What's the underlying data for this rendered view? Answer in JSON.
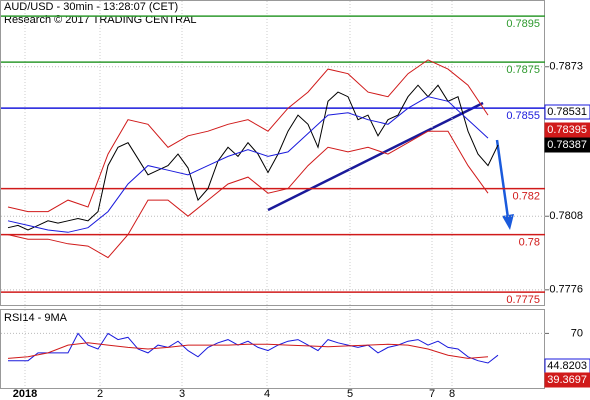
{
  "chart_data": [
    {
      "type": "financial",
      "title": "AUD/USD - 30min - 13:28:07 (CET)",
      "subtitle": "Research © 2017 TRADING CENTRAL",
      "ylim": [
        0.77694,
        0.79016
      ],
      "yticks": [
        0.7873,
        0.7808,
        0.7776
      ],
      "grid": true,
      "levels": [
        {
          "value": 0.7895,
          "color": "#2e9a2e"
        },
        {
          "value": 0.7875,
          "color": "#2e9a2e"
        },
        {
          "value": 0.7855,
          "color": "#1a1adc"
        },
        {
          "value": 0.782,
          "color": "#d01a1a"
        },
        {
          "value": 0.78,
          "color": "#d01a1a"
        },
        {
          "value": 0.7775,
          "color": "#d01a1a"
        }
      ],
      "markers": [
        {
          "value": 0.78531,
          "color": "#1a1adc"
        },
        {
          "value": 0.78395,
          "color": "#d01a1a"
        },
        {
          "value": 0.78387,
          "color": "#000000"
        }
      ],
      "series": [
        {
          "color": "#000000",
          "values": [
            0.7803,
            0.7804,
            0.7802,
            0.7804,
            0.7806,
            0.7805,
            0.7806,
            0.7807,
            0.7806,
            0.781,
            0.783,
            0.7838,
            0.784,
            0.7833,
            0.7826,
            0.7828,
            0.783,
            0.7835,
            0.7829,
            0.7815,
            0.782,
            0.7832,
            0.7838,
            0.7834,
            0.784,
            0.7835,
            0.7827,
            0.7835,
            0.7845,
            0.7852,
            0.7848,
            0.7838,
            0.7858,
            0.7862,
            0.786,
            0.785,
            0.7852,
            0.7843,
            0.785,
            0.7852,
            0.786,
            0.7865,
            0.786,
            0.7865,
            0.7858,
            0.786,
            0.7845,
            0.7835,
            0.783,
            0.7839
          ]
        },
        {
          "color": "#d01a1a",
          "values": [
            0.7812,
            0.781,
            0.781,
            0.7815,
            0.7812,
            0.7835,
            0.785,
            0.7848,
            0.7838,
            0.7843,
            0.7845,
            0.7848,
            0.785,
            0.7845,
            0.7855,
            0.7862,
            0.7872,
            0.787,
            0.7862,
            0.786,
            0.787,
            0.7876,
            0.7872,
            0.7865,
            0.7852
          ]
        },
        {
          "color": "#d01a1a",
          "values": [
            0.78,
            0.7798,
            0.7798,
            0.7796,
            0.7795,
            0.779,
            0.78,
            0.7815,
            0.7815,
            0.7808,
            0.7815,
            0.7822,
            0.7825,
            0.7818,
            0.782,
            0.783,
            0.7838,
            0.7836,
            0.7838,
            0.7835,
            0.784,
            0.7845,
            0.7845,
            0.783,
            0.7818
          ]
        },
        {
          "color": "#1a1adc",
          "values": [
            0.7806,
            0.7804,
            0.7802,
            0.7801,
            0.7803,
            0.781,
            0.7822,
            0.783,
            0.7828,
            0.7826,
            0.783,
            0.7834,
            0.7837,
            0.7834,
            0.7836,
            0.7844,
            0.7852,
            0.7853,
            0.785,
            0.7848,
            0.7855,
            0.786,
            0.7858,
            0.785,
            0.7842
          ]
        }
      ]
    },
    {
      "type": "line",
      "title": "RSI14 - 9MA",
      "ylim": [
        0,
        100
      ],
      "yticks": [
        70
      ],
      "x_labels": [
        "2018",
        "2",
        "3",
        "4",
        "5",
        "7",
        "8"
      ],
      "markers": [
        {
          "value": 44.8203,
          "color": "#1a1adc"
        },
        {
          "value": 39.3697,
          "color": "#d01a1a"
        }
      ],
      "series": [
        {
          "color": "#1a1adc",
          "values": [
            35,
            35,
            35,
            45,
            45,
            45,
            45,
            70,
            55,
            50,
            70,
            62,
            65,
            50,
            45,
            55,
            52,
            60,
            48,
            40,
            52,
            58,
            62,
            55,
            60,
            52,
            48,
            55,
            60,
            62,
            55,
            48,
            62,
            58,
            55,
            52,
            55,
            45,
            52,
            55,
            60,
            62,
            55,
            60,
            52,
            50,
            40,
            35,
            32,
            42
          ]
        },
        {
          "color": "#d01a1a",
          "values": [
            38,
            40,
            45,
            55,
            58,
            55,
            52,
            50,
            52,
            55,
            55,
            55,
            56,
            56,
            55,
            54,
            53,
            54,
            55,
            56,
            55,
            50,
            42,
            38,
            40
          ]
        }
      ]
    }
  ]
}
